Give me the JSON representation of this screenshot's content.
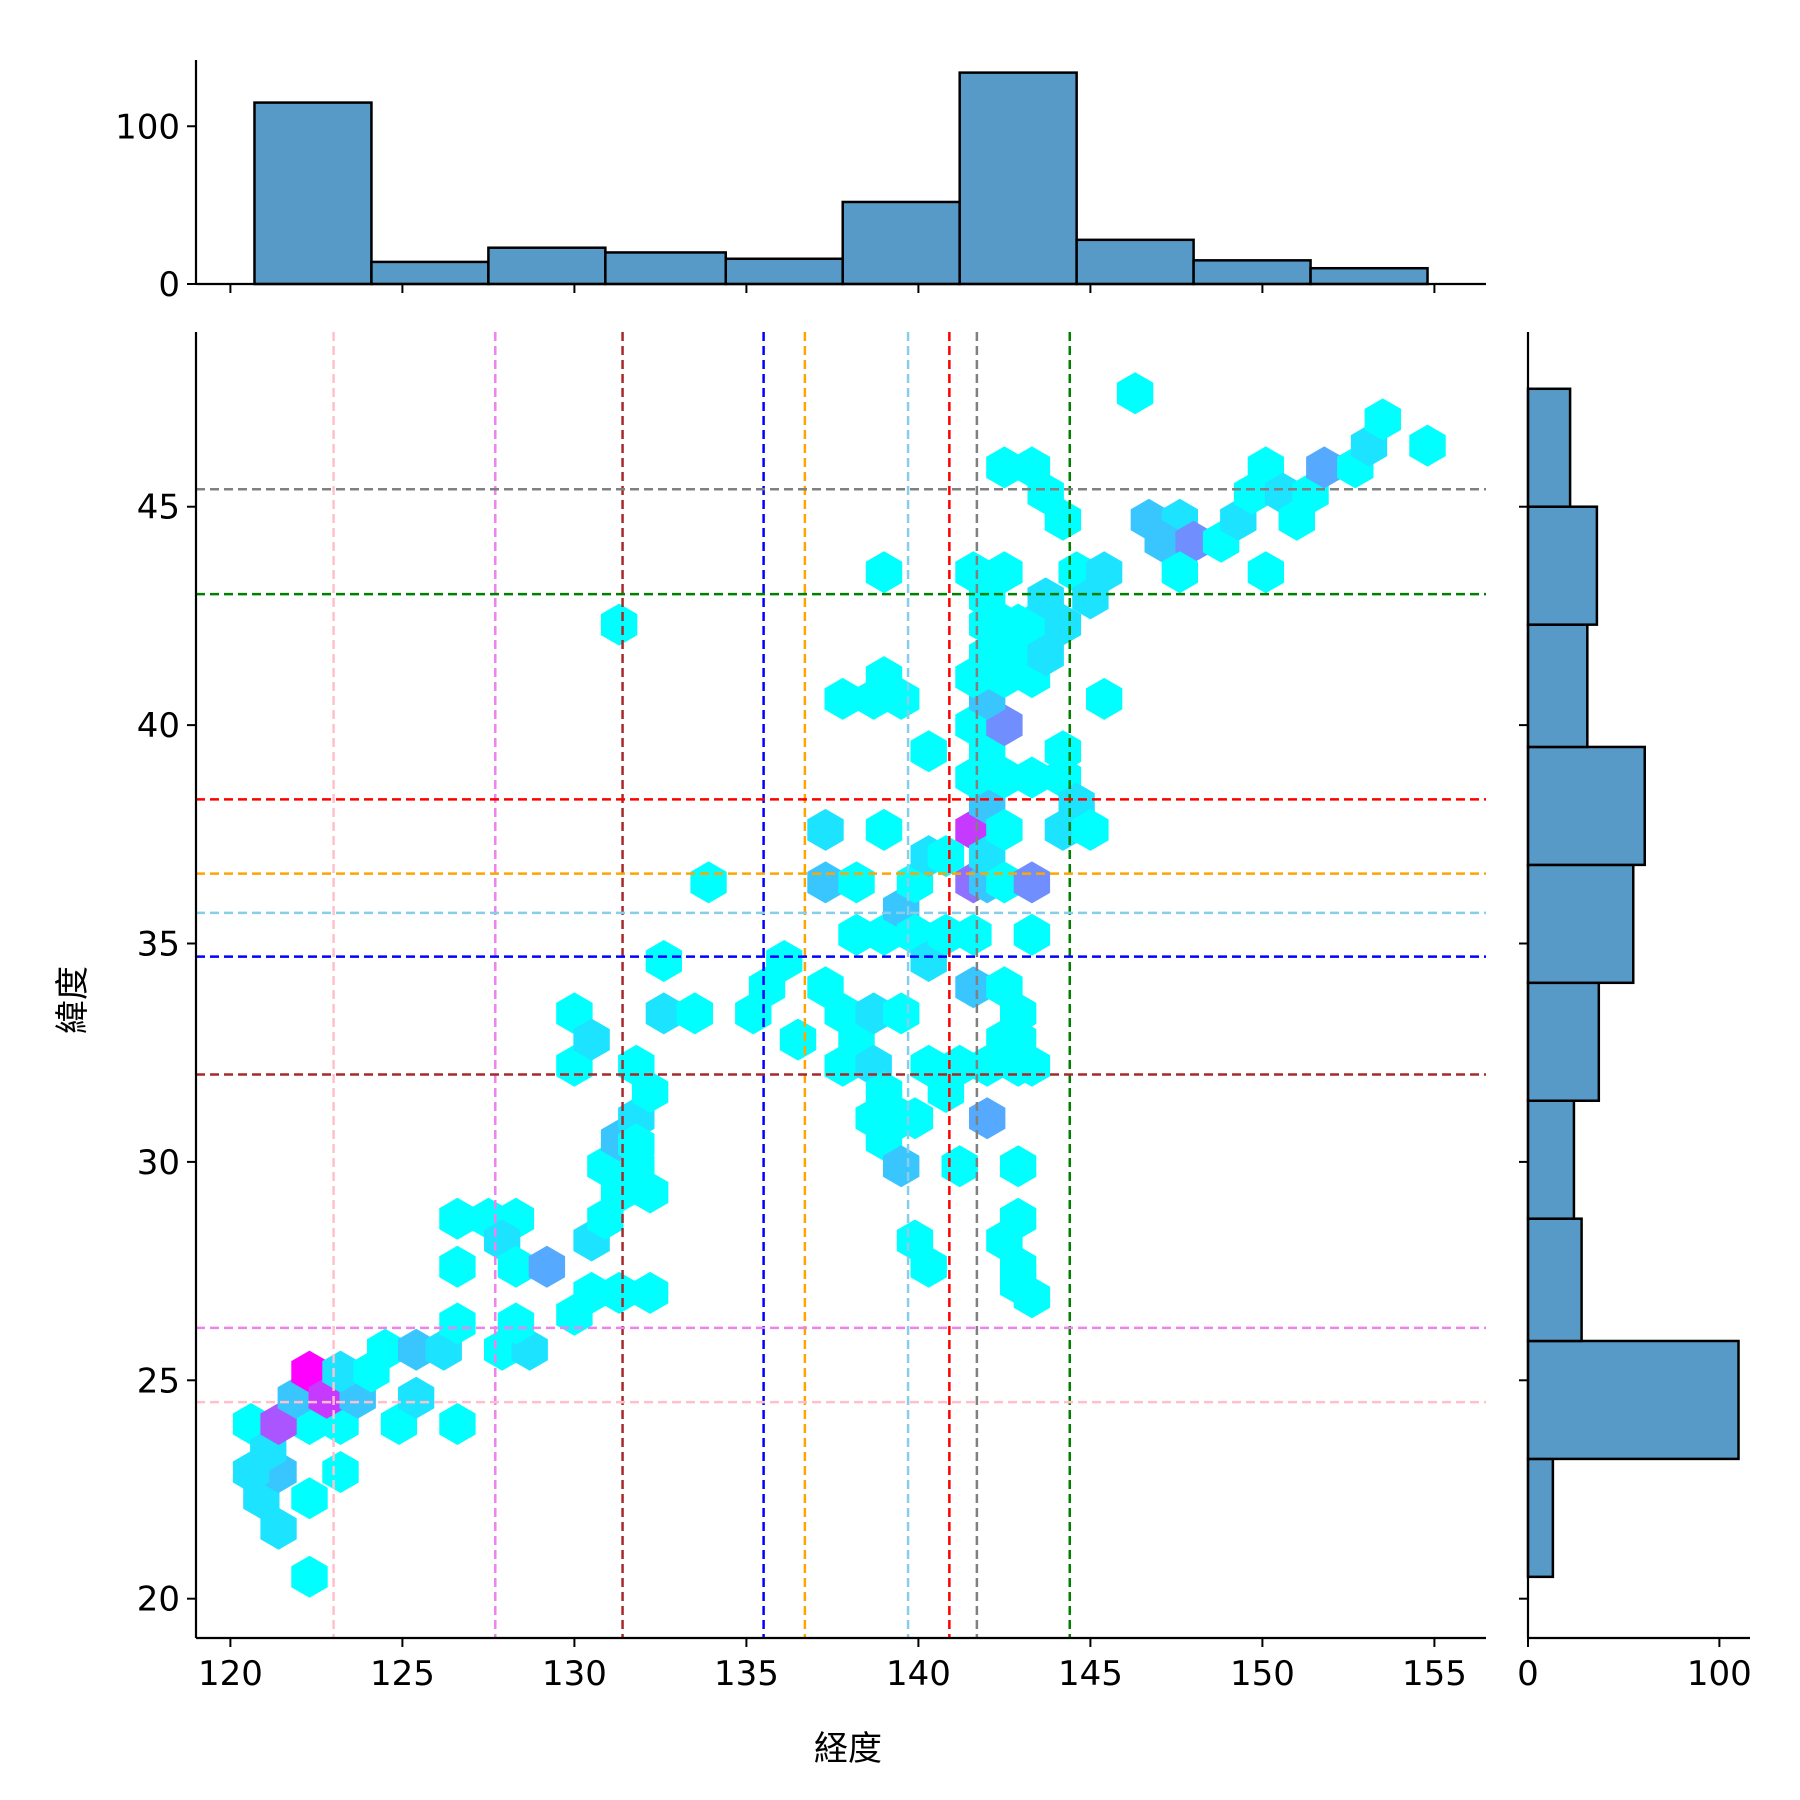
{
  "chart_data": {
    "type": "hexbin-jointplot",
    "xlabel": "経度",
    "ylabel": "緯度",
    "xlim": [
      119,
      156.5
    ],
    "ylim": [
      19.1,
      49
    ],
    "xticks": [
      120,
      125,
      130,
      135,
      140,
      145,
      150,
      155
    ],
    "yticks": [
      20,
      25,
      30,
      35,
      40,
      45
    ],
    "colormap": [
      "#00ffff",
      "#ff00ff"
    ],
    "hexbins": [
      [
        122.3,
        20.5,
        1
      ],
      [
        121.4,
        21.6,
        2
      ],
      [
        122.3,
        22.3,
        1
      ],
      [
        120.9,
        22.3,
        2
      ],
      [
        121.4,
        22.9,
        3
      ],
      [
        120.6,
        22.9,
        2
      ],
      [
        123.2,
        22.9,
        1
      ],
      [
        120.6,
        24.0,
        1
      ],
      [
        121.1,
        23.4,
        2
      ],
      [
        122.3,
        24.0,
        1
      ],
      [
        123.2,
        24.0,
        1
      ],
      [
        124.9,
        24.0,
        1
      ],
      [
        126.6,
        24.0,
        1
      ],
      [
        121.4,
        24.0,
        7
      ],
      [
        121.9,
        24.6,
        3
      ],
      [
        122.3,
        25.2,
        10
      ],
      [
        122.8,
        24.6,
        8
      ],
      [
        123.7,
        24.6,
        3
      ],
      [
        123.2,
        25.2,
        2
      ],
      [
        124.1,
        25.2,
        1
      ],
      [
        125.4,
        24.6,
        2
      ],
      [
        124.5,
        25.7,
        1
      ],
      [
        125.4,
        25.7,
        3
      ],
      [
        126.2,
        25.7,
        2
      ],
      [
        126.6,
        26.3,
        1
      ],
      [
        127.9,
        25.7,
        1
      ],
      [
        128.7,
        25.7,
        2
      ],
      [
        128.3,
        26.3,
        1
      ],
      [
        126.6,
        27.6,
        1
      ],
      [
        126.6,
        28.7,
        1
      ],
      [
        127.5,
        28.7,
        1
      ],
      [
        128.3,
        28.7,
        1
      ],
      [
        127.9,
        28.2,
        2
      ],
      [
        128.3,
        27.6,
        1
      ],
      [
        129.2,
        27.6,
        4
      ],
      [
        130.0,
        26.5,
        1
      ],
      [
        130.5,
        27.0,
        1
      ],
      [
        131.3,
        27.0,
        1
      ],
      [
        132.2,
        27.0,
        1
      ],
      [
        130.5,
        28.2,
        2
      ],
      [
        130.9,
        28.7,
        1
      ],
      [
        131.3,
        29.3,
        1
      ],
      [
        132.2,
        29.3,
        1
      ],
      [
        130.9,
        29.9,
        1
      ],
      [
        131.8,
        29.9,
        1
      ],
      [
        131.3,
        30.5,
        3
      ],
      [
        131.8,
        31.0,
        2
      ],
      [
        131.8,
        30.4,
        1
      ],
      [
        132.2,
        31.6,
        1
      ],
      [
        131.8,
        32.2,
        1
      ],
      [
        130.0,
        32.2,
        1
      ],
      [
        130.0,
        33.4,
        1
      ],
      [
        130.5,
        32.8,
        2
      ],
      [
        132.6,
        33.4,
        2
      ],
      [
        133.5,
        33.4,
        1
      ],
      [
        132.6,
        34.6,
        1
      ],
      [
        131.3,
        42.3,
        1
      ],
      [
        133.9,
        36.4,
        1
      ],
      [
        135.2,
        33.4,
        1
      ],
      [
        135.6,
        34.0,
        1
      ],
      [
        136.1,
        34.6,
        1
      ],
      [
        136.5,
        32.8,
        1
      ],
      [
        137.3,
        36.4,
        3
      ],
      [
        138.2,
        36.4,
        1
      ],
      [
        137.3,
        37.6,
        2
      ],
      [
        139.0,
        37.6,
        1
      ],
      [
        137.3,
        34.0,
        1
      ],
      [
        137.8,
        33.4,
        1
      ],
      [
        137.8,
        32.2,
        1
      ],
      [
        138.2,
        32.8,
        1
      ],
      [
        138.7,
        32.2,
        2
      ],
      [
        138.7,
        33.4,
        2
      ],
      [
        139.5,
        33.4,
        1
      ],
      [
        138.2,
        35.2,
        1
      ],
      [
        139.0,
        35.2,
        1
      ],
      [
        139.5,
        35.8,
        3
      ],
      [
        139.9,
        35.2,
        1
      ],
      [
        139.9,
        36.4,
        1
      ],
      [
        140.3,
        37.0,
        2
      ],
      [
        140.8,
        37.0,
        1
      ],
      [
        140.3,
        34.6,
        2
      ],
      [
        140.8,
        35.2,
        1
      ],
      [
        138.7,
        31.0,
        1
      ],
      [
        139.0,
        30.5,
        1
      ],
      [
        139.5,
        31.0,
        1
      ],
      [
        139.9,
        31.0,
        1
      ],
      [
        139.0,
        31.6,
        1
      ],
      [
        139.5,
        29.9,
        3
      ],
      [
        139.9,
        28.2,
        1
      ],
      [
        140.3,
        27.6,
        1
      ],
      [
        140.3,
        32.2,
        1
      ],
      [
        140.8,
        31.6,
        1
      ],
      [
        141.2,
        32.2,
        1
      ],
      [
        141.2,
        29.9,
        1
      ],
      [
        141.6,
        34.0,
        3
      ],
      [
        141.6,
        35.2,
        1
      ],
      [
        142.0,
        31.0,
        4
      ],
      [
        142.0,
        32.2,
        1
      ],
      [
        142.5,
        32.8,
        1
      ],
      [
        142.9,
        32.2,
        1
      ],
      [
        143.3,
        32.2,
        1
      ],
      [
        142.5,
        34.0,
        1
      ],
      [
        142.9,
        33.4,
        1
      ],
      [
        142.9,
        32.8,
        1
      ],
      [
        142.5,
        28.2,
        1
      ],
      [
        142.9,
        27.6,
        1
      ],
      [
        142.9,
        28.7,
        1
      ],
      [
        142.9,
        29.9,
        1
      ],
      [
        143.3,
        26.9,
        1
      ],
      [
        142.9,
        27.2,
        1
      ],
      [
        141.6,
        37.6,
        8
      ],
      [
        141.6,
        36.4,
        6
      ],
      [
        142.0,
        36.4,
        3
      ],
      [
        142.0,
        37.0,
        2
      ],
      [
        142.0,
        38.2,
        3
      ],
      [
        142.5,
        37.6,
        1
      ],
      [
        142.5,
        36.4,
        1
      ],
      [
        143.3,
        36.4,
        5
      ],
      [
        143.3,
        35.2,
        1
      ],
      [
        141.6,
        38.8,
        1
      ],
      [
        142.0,
        39.4,
        1
      ],
      [
        142.5,
        38.8,
        1
      ],
      [
        143.3,
        38.8,
        1
      ],
      [
        144.2,
        38.8,
        1
      ],
      [
        144.2,
        39.4,
        1
      ],
      [
        144.2,
        37.6,
        2
      ],
      [
        144.6,
        38.2,
        2
      ],
      [
        145.0,
        37.6,
        1
      ],
      [
        141.6,
        40.0,
        1
      ],
      [
        142.5,
        40.0,
        5
      ],
      [
        142.0,
        40.6,
        3
      ],
      [
        141.6,
        41.1,
        1
      ],
      [
        142.0,
        41.6,
        1
      ],
      [
        142.5,
        41.1,
        1
      ],
      [
        142.9,
        41.6,
        1
      ],
      [
        142.9,
        42.3,
        1
      ],
      [
        142.5,
        42.3,
        1
      ],
      [
        142.0,
        42.3,
        1
      ],
      [
        142.0,
        42.9,
        1
      ],
      [
        143.3,
        41.1,
        1
      ],
      [
        143.3,
        42.3,
        1
      ],
      [
        143.7,
        42.9,
        2
      ],
      [
        143.7,
        41.6,
        2
      ],
      [
        144.2,
        42.3,
        2
      ],
      [
        141.6,
        43.5,
        1
      ],
      [
        142.5,
        43.5,
        1
      ],
      [
        144.6,
        43.5,
        1
      ],
      [
        145.4,
        43.5,
        2
      ],
      [
        145.0,
        42.9,
        2
      ],
      [
        145.4,
        40.6,
        1
      ],
      [
        139.0,
        43.5,
        1
      ],
      [
        137.8,
        40.6,
        1
      ],
      [
        138.7,
        40.6,
        1
      ],
      [
        139.0,
        41.1,
        1
      ],
      [
        139.5,
        40.6,
        1
      ],
      [
        140.3,
        39.4,
        1
      ],
      [
        142.5,
        45.9,
        1
      ],
      [
        143.3,
        45.9,
        1
      ],
      [
        143.7,
        45.3,
        1
      ],
      [
        144.2,
        44.7,
        1
      ],
      [
        146.3,
        47.6,
        1
      ],
      [
        146.7,
        44.7,
        3
      ],
      [
        147.6,
        44.7,
        2
      ],
      [
        147.1,
        44.2,
        3
      ],
      [
        148.0,
        44.2,
        5
      ],
      [
        147.6,
        43.5,
        1
      ],
      [
        148.8,
        44.2,
        1
      ],
      [
        149.3,
        44.7,
        2
      ],
      [
        149.7,
        45.3,
        1
      ],
      [
        150.1,
        45.9,
        1
      ],
      [
        150.1,
        43.5,
        1
      ],
      [
        150.6,
        45.3,
        2
      ],
      [
        151.0,
        44.7,
        1
      ],
      [
        151.4,
        45.3,
        1
      ],
      [
        151.8,
        45.9,
        4
      ],
      [
        152.7,
        45.9,
        1
      ],
      [
        153.1,
        46.4,
        2
      ],
      [
        153.5,
        47.0,
        1
      ],
      [
        154.8,
        46.4,
        1
      ]
    ],
    "vlines": [
      {
        "x": 123.0,
        "color": "#ffc0cb"
      },
      {
        "x": 127.7,
        "color": "#ee82ee"
      },
      {
        "x": 131.4,
        "color": "#a52a2a"
      },
      {
        "x": 135.5,
        "color": "#0000ff"
      },
      {
        "x": 136.7,
        "color": "#ffa500"
      },
      {
        "x": 139.7,
        "color": "#87ceeb"
      },
      {
        "x": 140.9,
        "color": "#ff0000"
      },
      {
        "x": 141.7,
        "color": "#808080"
      },
      {
        "x": 144.4,
        "color": "#008000"
      }
    ],
    "hlines": [
      {
        "y": 45.4,
        "color": "#808080"
      },
      {
        "y": 43.0,
        "color": "#008000"
      },
      {
        "y": 38.3,
        "color": "#ff0000"
      },
      {
        "y": 36.6,
        "color": "#ffa500"
      },
      {
        "y": 35.7,
        "color": "#87ceeb"
      },
      {
        "y": 34.7,
        "color": "#0000ff"
      },
      {
        "y": 32.0,
        "color": "#a52a2a"
      },
      {
        "y": 26.2,
        "color": "#ee82ee"
      },
      {
        "y": 24.5,
        "color": "#ffc0cb"
      }
    ],
    "top_histogram": {
      "yticks": [
        0,
        100
      ],
      "ylim": [
        0,
        142
      ],
      "bins": [
        {
          "x0": 120.7,
          "x1": 124.1,
          "count": 115
        },
        {
          "x0": 124.1,
          "x1": 127.5,
          "count": 14
        },
        {
          "x0": 127.5,
          "x1": 130.9,
          "count": 23
        },
        {
          "x0": 130.9,
          "x1": 134.4,
          "count": 20
        },
        {
          "x0": 134.4,
          "x1": 137.8,
          "count": 16
        },
        {
          "x0": 137.8,
          "x1": 141.2,
          "count": 52
        },
        {
          "x0": 141.2,
          "x1": 144.6,
          "count": 134
        },
        {
          "x0": 144.6,
          "x1": 148.0,
          "count": 28
        },
        {
          "x0": 148.0,
          "x1": 151.4,
          "count": 15
        },
        {
          "x0": 151.4,
          "x1": 154.8,
          "count": 10
        }
      ]
    },
    "right_histogram": {
      "xticks": [
        0,
        100
      ],
      "xlim": [
        0,
        116
      ],
      "bins": [
        {
          "y0": 20.5,
          "y1": 23.2,
          "count": 13
        },
        {
          "y0": 23.2,
          "y1": 25.9,
          "count": 110
        },
        {
          "y0": 25.9,
          "y1": 28.7,
          "count": 28
        },
        {
          "y0": 28.7,
          "y1": 31.4,
          "count": 24
        },
        {
          "y0": 31.4,
          "y1": 34.1,
          "count": 37
        },
        {
          "y0": 34.1,
          "y1": 36.8,
          "count": 55
        },
        {
          "y0": 36.8,
          "y1": 39.5,
          "count": 61
        },
        {
          "y0": 39.5,
          "y1": 42.3,
          "count": 31
        },
        {
          "y0": 42.3,
          "y1": 45.0,
          "count": 36
        },
        {
          "y0": 45.0,
          "y1": 47.7,
          "count": 22
        }
      ]
    }
  }
}
